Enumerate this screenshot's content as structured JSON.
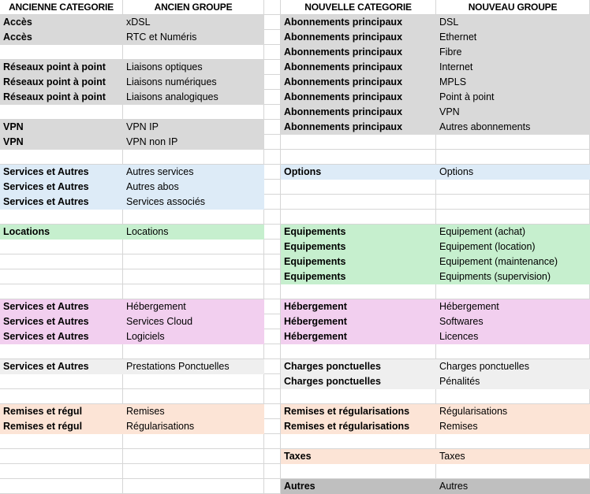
{
  "table": {
    "headers": {
      "old_category": "ANCIENNE CATEGORIE",
      "old_group": "ANCIEN GROUPE",
      "new_category": "NOUVELLE CATEGORIE",
      "new_group": "NOUVEAU GROUPE"
    },
    "colors": {
      "white": "#ffffff",
      "gray": "#d9d9d9",
      "blue": "#ddebf7",
      "green": "#c6efce",
      "pink": "#f2cfef",
      "peach": "#fce4d6",
      "lightgray": "#efefef",
      "darkgray": "#bfbfbf",
      "gridline": "#d6d6d6"
    },
    "rows": [
      {
        "old_category": "Accès",
        "old_group": "xDSL",
        "old_color": "gray",
        "new_category": "Abonnements principaux",
        "new_group": "DSL",
        "new_color": "gray"
      },
      {
        "old_category": "Accès",
        "old_group": "RTC et Numéris",
        "old_color": "gray",
        "new_category": "Abonnements principaux",
        "new_group": "Ethernet",
        "new_color": "gray"
      },
      {
        "old_category": "",
        "old_group": "",
        "old_color": "white",
        "new_category": "Abonnements principaux",
        "new_group": "Fibre",
        "new_color": "gray"
      },
      {
        "old_category": "Réseaux point à point",
        "old_group": "Liaisons optiques",
        "old_color": "gray",
        "new_category": "Abonnements principaux",
        "new_group": "Internet",
        "new_color": "gray"
      },
      {
        "old_category": "Réseaux point à point",
        "old_group": "Liaisons numériques",
        "old_color": "gray",
        "new_category": "Abonnements principaux",
        "new_group": "MPLS",
        "new_color": "gray"
      },
      {
        "old_category": "Réseaux point à point",
        "old_group": "Liaisons analogiques",
        "old_color": "gray",
        "new_category": "Abonnements principaux",
        "new_group": "Point à point",
        "new_color": "gray"
      },
      {
        "old_category": "",
        "old_group": "",
        "old_color": "white",
        "new_category": "Abonnements principaux",
        "new_group": "VPN",
        "new_color": "gray"
      },
      {
        "old_category": "VPN",
        "old_group": "VPN IP",
        "old_color": "gray",
        "new_category": "Abonnements principaux",
        "new_group": "Autres abonnements",
        "new_color": "gray"
      },
      {
        "old_category": "VPN",
        "old_group": "VPN non IP",
        "old_color": "gray",
        "new_category": "",
        "new_group": "",
        "new_color": "white"
      },
      {
        "old_category": "",
        "old_group": "",
        "old_color": "white",
        "new_category": "",
        "new_group": "",
        "new_color": "white"
      },
      {
        "old_category": "Services et Autres",
        "old_group": "Autres services",
        "old_color": "blue",
        "new_category": "Options",
        "new_group": "Options",
        "new_color": "blue"
      },
      {
        "old_category": "Services et Autres",
        "old_group": "Autres abos",
        "old_color": "blue",
        "new_category": "",
        "new_group": "",
        "new_color": "white"
      },
      {
        "old_category": "Services et Autres",
        "old_group": "Services associés",
        "old_color": "blue",
        "new_category": "",
        "new_group": "",
        "new_color": "white"
      },
      {
        "old_category": "",
        "old_group": "",
        "old_color": "white",
        "new_category": "",
        "new_group": "",
        "new_color": "white"
      },
      {
        "old_category": "Locations",
        "old_group": "Locations",
        "old_color": "green",
        "new_category": "Equipements",
        "new_group": "Equipement (achat)",
        "new_color": "green"
      },
      {
        "old_category": "",
        "old_group": "",
        "old_color": "white",
        "new_category": "Equipements",
        "new_group": "Equipement (location)",
        "new_color": "green"
      },
      {
        "old_category": "",
        "old_group": "",
        "old_color": "white",
        "new_category": "Equipements",
        "new_group": "Equipement (maintenance)",
        "new_color": "green"
      },
      {
        "old_category": "",
        "old_group": "",
        "old_color": "white",
        "new_category": "Equipements",
        "new_group": "Equipments (supervision)",
        "new_color": "green"
      },
      {
        "old_category": "",
        "old_group": "",
        "old_color": "white",
        "new_category": "",
        "new_group": "",
        "new_color": "white"
      },
      {
        "old_category": "Services et Autres",
        "old_group": "Hébergement",
        "old_color": "pink",
        "new_category": "Hébergement",
        "new_group": "Hébergement",
        "new_color": "pink"
      },
      {
        "old_category": "Services et Autres",
        "old_group": "Services Cloud",
        "old_color": "pink",
        "new_category": "Hébergement",
        "new_group": "Softwares",
        "new_color": "pink"
      },
      {
        "old_category": "Services et Autres",
        "old_group": "Logiciels",
        "old_color": "pink",
        "new_category": "Hébergement",
        "new_group": "Licences",
        "new_color": "pink"
      },
      {
        "old_category": "",
        "old_group": "",
        "old_color": "white",
        "new_category": "",
        "new_group": "",
        "new_color": "white"
      },
      {
        "old_category": "Services et Autres",
        "old_group": "Prestations Ponctuelles",
        "old_color": "lightgray",
        "new_category": "Charges ponctuelles",
        "new_group": "Charges ponctuelles",
        "new_color": "lightgray"
      },
      {
        "old_category": "",
        "old_group": "",
        "old_color": "white",
        "new_category": "Charges ponctuelles",
        "new_group": "Pénalités",
        "new_color": "lightgray"
      },
      {
        "old_category": "",
        "old_group": "",
        "old_color": "white",
        "new_category": "",
        "new_group": "",
        "new_color": "white"
      },
      {
        "old_category": "Remises et régul",
        "old_group": "Remises",
        "old_color": "peach",
        "new_category": "Remises et régularisations",
        "new_group": "Régularisations",
        "new_color": "peach"
      },
      {
        "old_category": "Remises et régul",
        "old_group": "Régularisations",
        "old_color": "peach",
        "new_category": "Remises et régularisations",
        "new_group": "Remises",
        "new_color": "peach"
      },
      {
        "old_category": "",
        "old_group": "",
        "old_color": "white",
        "new_category": "",
        "new_group": "",
        "new_color": "white"
      },
      {
        "old_category": "",
        "old_group": "",
        "old_color": "white",
        "new_category": "Taxes",
        "new_group": "Taxes",
        "new_color": "peach"
      },
      {
        "old_category": "",
        "old_group": "",
        "old_color": "white",
        "new_category": "",
        "new_group": "",
        "new_color": "white"
      },
      {
        "old_category": "",
        "old_group": "",
        "old_color": "white",
        "new_category": "Autres",
        "new_group": "Autres",
        "new_color": "darkgray"
      }
    ]
  }
}
